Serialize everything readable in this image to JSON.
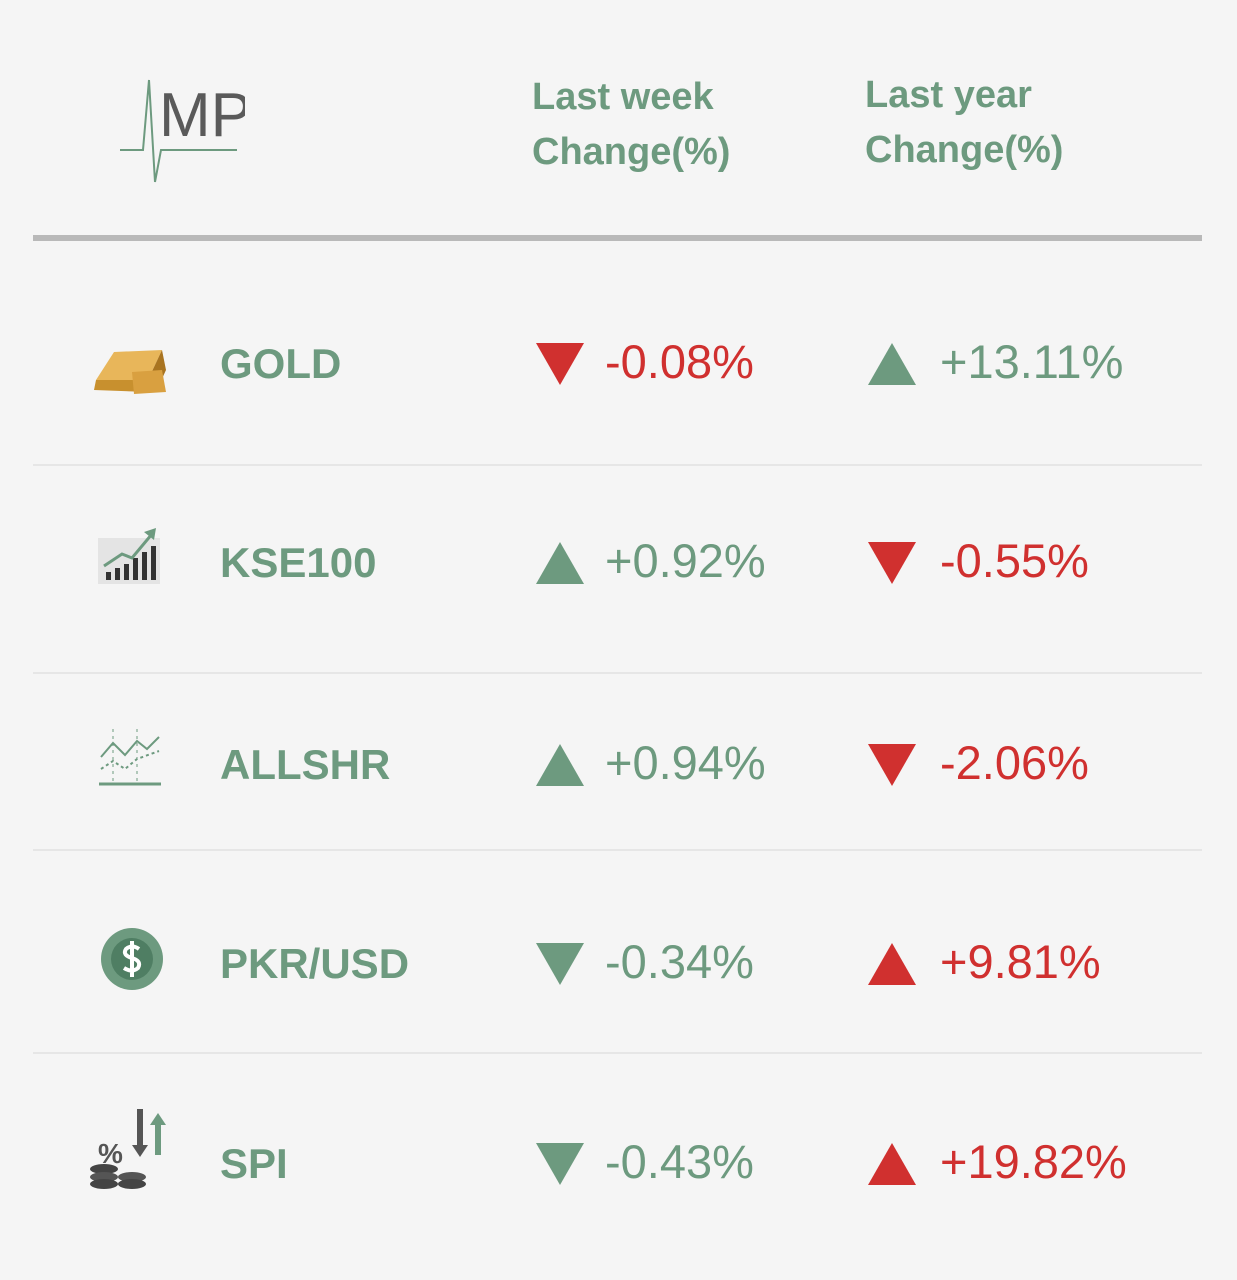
{
  "header": {
    "logo": "MP",
    "columns": [
      "Last week Change(%)",
      "Last year Change(%)"
    ]
  },
  "table": {
    "rows": [
      {
        "name": "GOLD",
        "week": {
          "text": "-0.08%",
          "direction": "down",
          "color": "#d0302f"
        },
        "year": {
          "text": "+13.11%",
          "direction": "up",
          "color": "#6d9a7f"
        }
      },
      {
        "name": "KSE100",
        "week": {
          "text": "+0.92%",
          "direction": "up",
          "color": "#6d9a7f"
        },
        "year": {
          "text": "-0.55%",
          "direction": "down",
          "color": "#d0302f"
        }
      },
      {
        "name": "ALLSHR",
        "week": {
          "text": "+0.94%",
          "direction": "up",
          "color": "#6d9a7f"
        },
        "year": {
          "text": "-2.06%",
          "direction": "down",
          "color": "#d0302f"
        }
      },
      {
        "name": "PKR/USD",
        "week": {
          "text": "-0.34%",
          "direction": "down",
          "color": "#6d9a7f"
        },
        "year": {
          "text": "+9.81%",
          "direction": "up",
          "color": "#d0302f"
        }
      },
      {
        "name": "SPI",
        "week": {
          "text": "-0.43%",
          "direction": "down",
          "color": "#6d9a7f"
        },
        "year": {
          "text": "+19.82%",
          "direction": "up",
          "color": "#d0302f"
        }
      }
    ]
  }
}
